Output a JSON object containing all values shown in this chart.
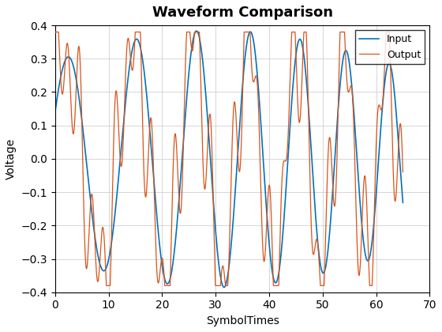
{
  "title": "Waveform Comparison",
  "xlabel": "SymbolTimes",
  "ylabel": "Voltage",
  "xlim": [
    0,
    70
  ],
  "ylim": [
    -0.4,
    0.4
  ],
  "xticks": [
    0,
    10,
    20,
    30,
    40,
    50,
    60,
    70
  ],
  "yticks": [
    -0.4,
    -0.3,
    -0.2,
    -0.1,
    0,
    0.1,
    0.2,
    0.3,
    0.4
  ],
  "input_color": "#0072BD",
  "output_color": "#D95319",
  "legend_labels": [
    "Input",
    "Output"
  ],
  "grid": true,
  "figsize": [
    5.6,
    4.2
  ],
  "dpi": 100,
  "title_fontsize": 13,
  "label_fontsize": 10,
  "legend_fontsize": 9,
  "linewidth_input": 1.2,
  "linewidth_output": 0.9,
  "background_color": "#ffffff",
  "grid_color": "#d0d0d0"
}
